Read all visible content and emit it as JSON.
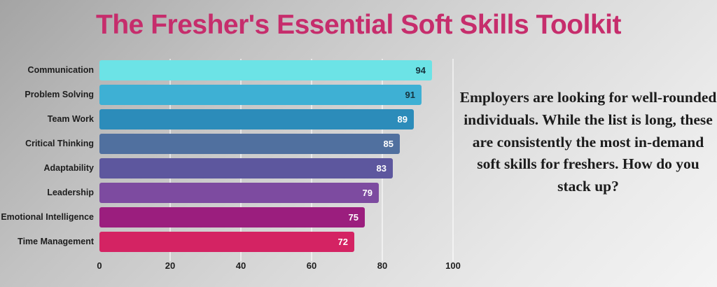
{
  "title": "The Fresher's Essential Soft Skills Toolkit",
  "chart_data": {
    "type": "bar",
    "orientation": "horizontal",
    "title": "The Fresher's Essential Soft Skills Toolkit",
    "categories": [
      "Communication",
      "Problem Solving",
      "Team Work",
      "Critical Thinking",
      "Adaptability",
      "Leadership",
      "Emotional Intelligence",
      "Time Management"
    ],
    "values": [
      94,
      91,
      89,
      85,
      83,
      79,
      75,
      72
    ],
    "bar_colors": [
      "#6CE3E6",
      "#3EB0D4",
      "#2C8CBA",
      "#50709F",
      "#5D579E",
      "#7D4BA0",
      "#9B1E7E",
      "#D42363"
    ],
    "value_label_colors": [
      "#16323c",
      "#16323c",
      "#ffffff",
      "#ffffff",
      "#ffffff",
      "#ffffff",
      "#ffffff",
      "#ffffff"
    ],
    "xlabel": "",
    "ylabel": "",
    "xlim": [
      0,
      100
    ],
    "x_ticks": [
      0,
      20,
      40,
      60,
      80,
      100
    ],
    "grid": "vertical-lines",
    "legend": "none"
  },
  "annotation": {
    "text": "Employers are looking for well-rounded individuals. While the list is long, these are consistently the most in-demand soft skills for freshers. How do you stack up?"
  },
  "colors": {
    "title_text": "#c62d6c",
    "background_dark_corner": "#a4a4a4",
    "background_light_corner": "#f4f4f4",
    "gridline": "#ffffff",
    "axis_text": "#1e1e1e",
    "category_text": "#1d1d1d",
    "annotation_text": "#1c1c1c"
  }
}
